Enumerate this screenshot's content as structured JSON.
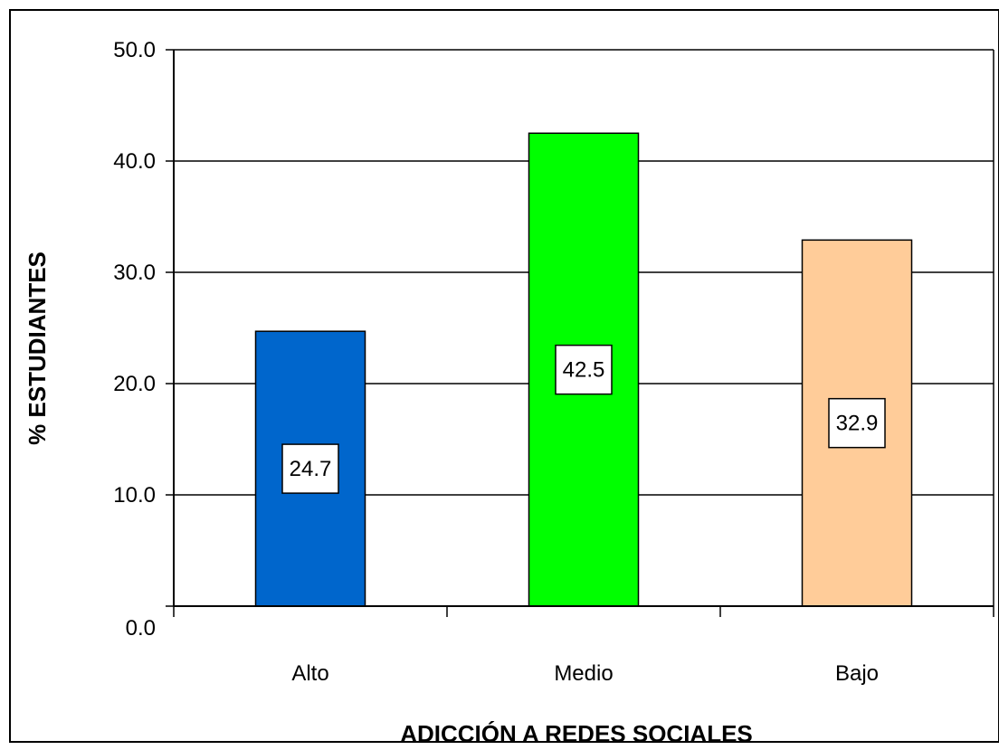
{
  "chart_data": {
    "type": "bar",
    "title": "",
    "xlabel": "ADICCIÓN A REDES SOCIALES",
    "ylabel": "% ESTUDIANTES",
    "categories": [
      "Alto",
      "Medio",
      "Bajo"
    ],
    "values": [
      24.7,
      42.5,
      32.9
    ],
    "data_labels": [
      "24.7",
      "42.5",
      "32.9"
    ],
    "bar_colors": [
      "#0066cc",
      "#00ff00",
      "#ffcc99"
    ],
    "ylim": [
      0,
      50
    ],
    "yticks": [
      0,
      10,
      20,
      30,
      40,
      50
    ],
    "ytick_labels": [
      "0.0",
      "10.0",
      "20.0",
      "30.0",
      "40.0",
      "50.0"
    ],
    "grid": true,
    "legend": "none"
  }
}
